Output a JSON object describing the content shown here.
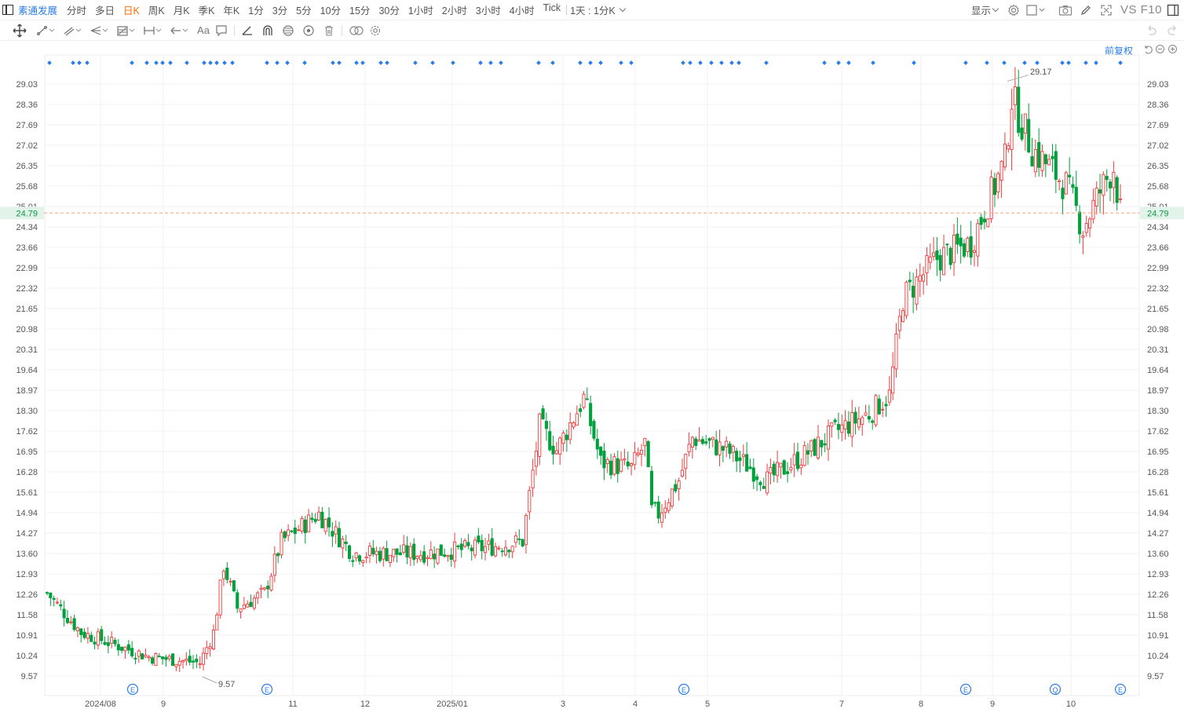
{
  "toolbar_top": {
    "stock_name": "素通发展",
    "periods": [
      "分时",
      "多日",
      "日K",
      "周K",
      "月K",
      "季K",
      "年K",
      "1分",
      "3分",
      "5分",
      "10分",
      "15分",
      "30分",
      "1小时",
      "2小时",
      "3小时",
      "4小时",
      "Tick"
    ],
    "active_period": "日K",
    "range_label": "1天 : 1分K",
    "display_label": "显示",
    "vs_label": "VS F10"
  },
  "rights": {
    "label": "前复权"
  },
  "colors": {
    "up": "#ee3b3b",
    "down": "#00a03c",
    "accent": "#2b7de9",
    "last_price_bg": "#e2f3ea",
    "last_price_text": "#0b9a45",
    "grid": "#f0f1f4"
  },
  "icons": [
    "pane-icon",
    "cross-move-icon",
    "line-tool-icon",
    "channel-tool-icon",
    "fork-tool-icon",
    "fib-tool-icon",
    "measure-tool-icon",
    "arrow-tool-icon",
    "text-tool-icon",
    "note-tool-icon",
    "angle-icon",
    "magnet-icon",
    "eye-hide-icon",
    "visible-icon",
    "trash-icon",
    "compare-icon",
    "settings-icon",
    "undo-icon",
    "redo-icon",
    "reset-icon",
    "zoom-out-icon",
    "zoom-in-icon",
    "camera-icon",
    "brush-icon",
    "fullscreen-icon",
    "window-icon"
  ],
  "chart_data": {
    "type": "candlestick",
    "y_ticks": [
      "29.03",
      "28.36",
      "27.69",
      "27.02",
      "26.35",
      "25.68",
      "25.01",
      "24.34",
      "23.66",
      "22.99",
      "22.32",
      "21.65",
      "20.98",
      "20.31",
      "19.64",
      "18.97",
      "18.30",
      "17.62",
      "16.95",
      "16.28",
      "15.61",
      "14.94",
      "14.27",
      "13.60",
      "12.93",
      "12.26",
      "11.58",
      "10.91",
      "10.24",
      "9.57"
    ],
    "ylim": [
      9.0,
      30.0
    ],
    "last_price": "24.79",
    "x_labels": [
      "2024/08",
      "9",
      "11",
      "12",
      "2025/01",
      "3",
      "4",
      "5",
      "7",
      "8",
      "9",
      "10"
    ],
    "high_annotation": "29.17",
    "low_annotation": "9.57",
    "event_markers": [
      "E",
      "E",
      "E",
      "E",
      "Q",
      "E"
    ],
    "series_keypoints": [
      {
        "bar": 0,
        "close": 12.3
      },
      {
        "bar": 10,
        "close": 11.0
      },
      {
        "bar": 30,
        "close": 10.2
      },
      {
        "bar": 45,
        "close": 10.0
      },
      {
        "bar": 49,
        "close": 11.0
      },
      {
        "bar": 52,
        "close": 13.2
      },
      {
        "bar": 56,
        "close": 11.8
      },
      {
        "bar": 64,
        "close": 12.3
      },
      {
        "bar": 69,
        "close": 14.0
      },
      {
        "bar": 80,
        "close": 14.9
      },
      {
        "bar": 90,
        "close": 13.6
      },
      {
        "bar": 110,
        "close": 13.6
      },
      {
        "bar": 130,
        "close": 13.8
      },
      {
        "bar": 140,
        "close": 14.0
      },
      {
        "bar": 145,
        "close": 17.8
      },
      {
        "bar": 150,
        "close": 17.0
      },
      {
        "bar": 158,
        "close": 18.7
      },
      {
        "bar": 163,
        "close": 16.6
      },
      {
        "bar": 172,
        "close": 16.4
      },
      {
        "bar": 176,
        "close": 17.2
      },
      {
        "bar": 178,
        "close": 15.0
      },
      {
        "bar": 180,
        "close": 14.9
      },
      {
        "bar": 186,
        "close": 16.0
      },
      {
        "bar": 190,
        "close": 17.4
      },
      {
        "bar": 200,
        "close": 17.0
      },
      {
        "bar": 212,
        "close": 16.0
      },
      {
        "bar": 225,
        "close": 17.0
      },
      {
        "bar": 232,
        "close": 17.6
      },
      {
        "bar": 242,
        "close": 18.2
      },
      {
        "bar": 248,
        "close": 18.8
      },
      {
        "bar": 252,
        "close": 22.0
      },
      {
        "bar": 262,
        "close": 23.3
      },
      {
        "bar": 272,
        "close": 23.8
      },
      {
        "bar": 282,
        "close": 26.5
      },
      {
        "bar": 284,
        "close": 28.6
      },
      {
        "bar": 290,
        "close": 26.9
      },
      {
        "bar": 300,
        "close": 25.7
      },
      {
        "bar": 305,
        "close": 24.3
      },
      {
        "bar": 310,
        "close": 25.5
      },
      {
        "bar": 314,
        "close": 26.3
      },
      {
        "bar": 316,
        "close": 24.8
      }
    ]
  }
}
